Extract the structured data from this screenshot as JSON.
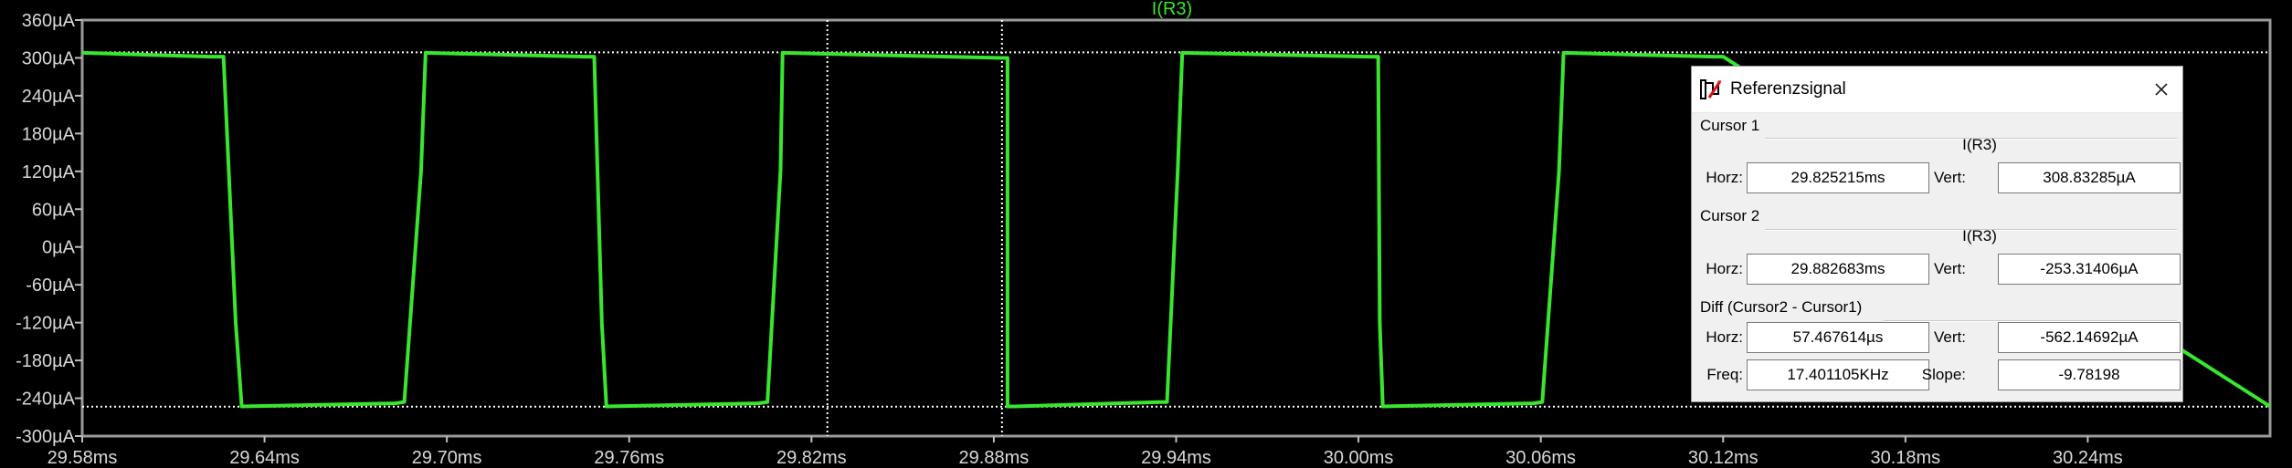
{
  "window": {
    "trace_title": "I(R3)"
  },
  "chart_data": {
    "type": "line",
    "title": "I(R3)",
    "xlabel": "",
    "ylabel": "",
    "x_unit": "ms",
    "y_unit": "µA",
    "xlim": [
      29.58,
      30.3
    ],
    "ylim": [
      -300,
      360
    ],
    "x_ticks": [
      29.58,
      29.64,
      29.7,
      29.76,
      29.82,
      29.88,
      29.94,
      30.0,
      30.06,
      30.12,
      30.18,
      30.24
    ],
    "x_tick_labels": [
      "29.58ms",
      "29.64ms",
      "29.70ms",
      "29.76ms",
      "29.82ms",
      "29.88ms",
      "29.94ms",
      "30.00ms",
      "30.06ms",
      "30.12ms",
      "30.18ms",
      "30.24ms"
    ],
    "y_ticks": [
      360,
      300,
      240,
      180,
      120,
      60,
      0,
      -60,
      -120,
      -180,
      -240,
      -300
    ],
    "y_tick_labels": [
      "360µA",
      "300µA",
      "240µA",
      "180µA",
      "120µA",
      "60µA",
      "0µA",
      "-60µA",
      "-120µA",
      "-180µA",
      "-240µA",
      "-300µA"
    ],
    "grid": false,
    "background": "#000000",
    "series": [
      {
        "name": "I(R3)",
        "color": "#39e52f",
        "x": [
          29.58,
          29.622,
          29.6265,
          29.6305,
          29.6325,
          29.683,
          29.686,
          29.6915,
          29.693,
          29.745,
          29.7485,
          29.751,
          29.7525,
          29.8025,
          29.8055,
          29.8098,
          29.8105,
          29.8825,
          29.8845,
          29.8845,
          29.887,
          29.9345,
          29.937,
          29.9405,
          29.942,
          30.0035,
          30.0065,
          30.007,
          30.008,
          30.0575,
          30.0605,
          30.066,
          30.0675,
          30.117,
          30.12,
          30.3
        ],
        "y": [
          308,
          302,
          302,
          -120,
          -253,
          -248,
          -246,
          120,
          308,
          302,
          302,
          -120,
          -253,
          -248,
          -246,
          120,
          308,
          300,
          300,
          -253,
          -253,
          -246,
          -246,
          120,
          308,
          302,
          302,
          -120,
          -253,
          -248,
          -246,
          120,
          308,
          302,
          302,
          -253
        ]
      }
    ],
    "cursors": [
      {
        "name": "Cursor 1",
        "x": 29.825215,
        "y": 308.83285,
        "color": "#ffffff",
        "style": "dotted"
      },
      {
        "name": "Cursor 2",
        "x": 29.882683,
        "y": -253.31406,
        "color": "#ffffff",
        "style": "dotted"
      }
    ]
  },
  "dialog": {
    "title": "Referenzsignal",
    "icon": "cursor-probe-icon",
    "close_icon": "close-icon",
    "cursor1": {
      "title": "Cursor 1",
      "trace": "I(R3)",
      "horz_label": "Horz:",
      "horz_value": "29.825215ms",
      "vert_label": "Vert:",
      "vert_value": "308.83285µA"
    },
    "cursor2": {
      "title": "Cursor 2",
      "trace": "I(R3)",
      "horz_label": "Horz:",
      "horz_value": "29.882683ms",
      "vert_label": "Vert:",
      "vert_value": "-253.31406µA"
    },
    "diff": {
      "title": "Diff (Cursor2 - Cursor1)",
      "horz_label": "Horz:",
      "horz_value": "57.467614µs",
      "vert_label": "Vert:",
      "vert_value": "-562.14692µA",
      "freq_label": "Freq:",
      "freq_value": "17.401105KHz",
      "slope_label": "Slope:",
      "slope_value": "-9.78198"
    }
  }
}
